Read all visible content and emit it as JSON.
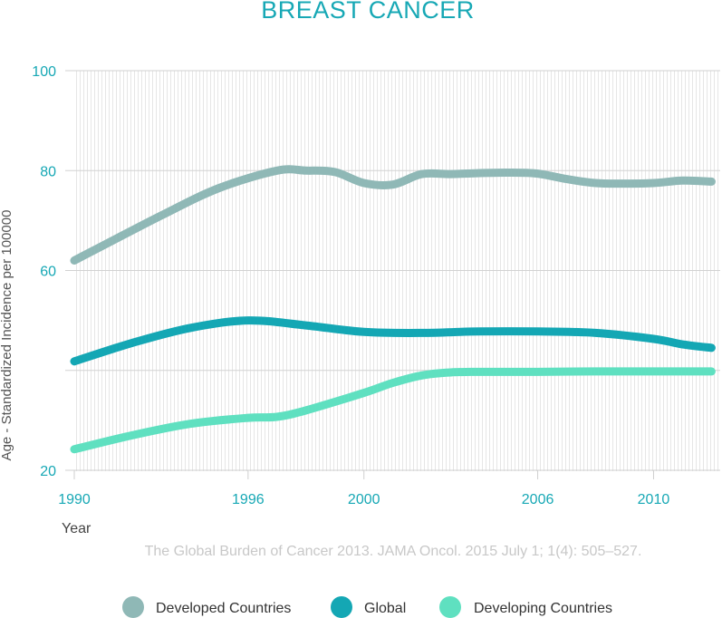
{
  "chart_data": {
    "type": "line",
    "title": "BREAST CANCER",
    "xlabel": "Year",
    "ylabel": "Age - Standardized Incidence per 100000",
    "source": "The Global Burden of Cancer 2013. JAMA Oncol. 2015 July 1; 1(4): 505–527.",
    "xlim": [
      1990,
      2012.3
    ],
    "ylim": [
      20,
      100
    ],
    "x_ticks": [
      "1990",
      "1996",
      "2000",
      "2006",
      "2010"
    ],
    "x_tick_values": [
      1990,
      1996,
      2000,
      2006,
      2010
    ],
    "y_ticks": [
      {
        "value": 100,
        "label": "100"
      },
      {
        "value": 80,
        "label": "80"
      },
      {
        "value": 60,
        "label": "60"
      },
      {
        "value": 40,
        "label": ""
      },
      {
        "value": 20,
        "label": "20"
      }
    ],
    "grid": "horizontal at major ticks, dense vertical hatching",
    "legend_position": "bottom",
    "series": [
      {
        "name": "Developed Countries",
        "color": "#8fb8b6",
        "x": [
          1990,
          1993,
          1995,
          1997,
          1998,
          1999,
          2000,
          2001,
          2002,
          2003,
          2004,
          2005,
          2006,
          2007,
          2008,
          2009,
          2010,
          2011,
          2012
        ],
        "y": [
          62,
          71,
          76.5,
          80,
          80,
          79.7,
          77.5,
          77.2,
          79.3,
          79.3,
          79.5,
          79.6,
          79.4,
          78.3,
          77.5,
          77.4,
          77.5,
          78,
          77.8
        ]
      },
      {
        "name": "Global",
        "color": "#14a7b4",
        "x": [
          1990,
          1992,
          1994,
          1996,
          1998,
          2000,
          2002,
          2004,
          2006,
          2008,
          2010,
          2011,
          2012
        ],
        "y": [
          41.8,
          45.5,
          48.5,
          50,
          49,
          47.7,
          47.5,
          47.8,
          47.8,
          47.5,
          46.3,
          45.2,
          44.5
        ]
      },
      {
        "name": "Developing Countries",
        "color": "#5fe0c0",
        "x": [
          1990,
          1992,
          1994,
          1996,
          1997,
          1998,
          2000,
          2001,
          2002,
          2003,
          2004,
          2006,
          2008,
          2010,
          2012
        ],
        "y": [
          24.2,
          27,
          29.3,
          30.5,
          30.7,
          32,
          35.5,
          37.5,
          39,
          39.6,
          39.7,
          39.7,
          39.8,
          39.8,
          39.8
        ]
      }
    ]
  }
}
